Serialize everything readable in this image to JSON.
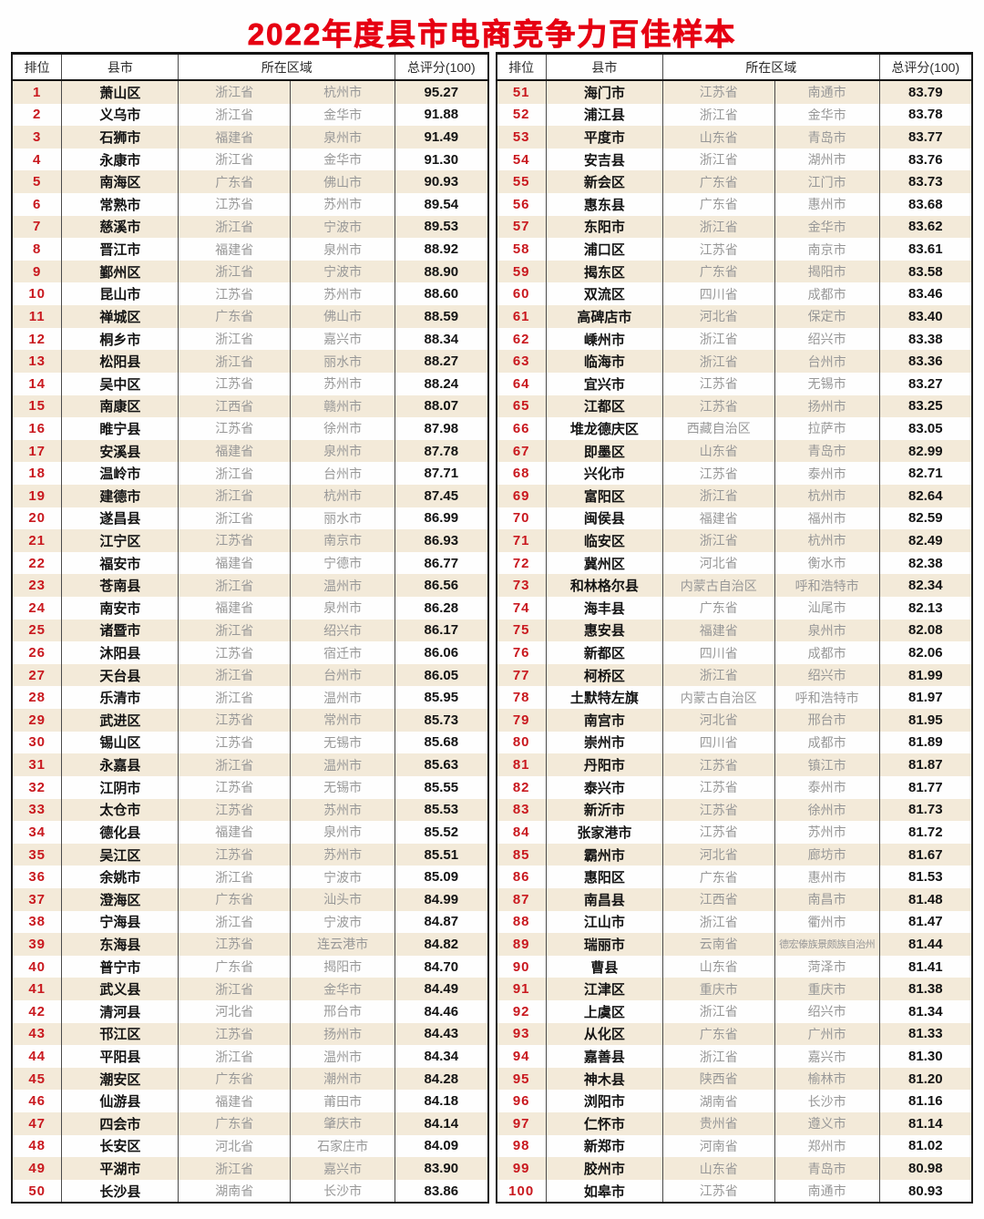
{
  "headers": {
    "rank": "排位",
    "county": "县市",
    "region": "所在区域",
    "score": "总评分(100)"
  },
  "colors": {
    "title_red": "#e60012",
    "rank_red": "#c9191f",
    "stripe_beige": "#f3ead9",
    "muted_gray": "#989898",
    "dark_text": "#141414",
    "border_dark": "#141414"
  },
  "chart_data": {
    "type": "table",
    "title": "2022年度县市电商竞争力百佳样本",
    "columns": [
      "排位",
      "县市",
      "所在区域",
      "总评分(100)"
    ],
    "layout": "two side-by-side tables, ranks 1-50 left, 51-100 right, odd rows beige-striped",
    "rows": [
      {
        "rank": "1",
        "county": "萧山区",
        "province": "浙江省",
        "city": "杭州市",
        "score": "95.27"
      },
      {
        "rank": "2",
        "county": "义乌市",
        "province": "浙江省",
        "city": "金华市",
        "score": "91.88"
      },
      {
        "rank": "3",
        "county": "石狮市",
        "province": "福建省",
        "city": "泉州市",
        "score": "91.49"
      },
      {
        "rank": "4",
        "county": "永康市",
        "province": "浙江省",
        "city": "金华市",
        "score": "91.30"
      },
      {
        "rank": "5",
        "county": "南海区",
        "province": "广东省",
        "city": "佛山市",
        "score": "90.93"
      },
      {
        "rank": "6",
        "county": "常熟市",
        "province": "江苏省",
        "city": "苏州市",
        "score": "89.54"
      },
      {
        "rank": "7",
        "county": "慈溪市",
        "province": "浙江省",
        "city": "宁波市",
        "score": "89.53"
      },
      {
        "rank": "8",
        "county": "晋江市",
        "province": "福建省",
        "city": "泉州市",
        "score": "88.92"
      },
      {
        "rank": "9",
        "county": "鄞州区",
        "province": "浙江省",
        "city": "宁波市",
        "score": "88.90"
      },
      {
        "rank": "10",
        "county": "昆山市",
        "province": "江苏省",
        "city": "苏州市",
        "score": "88.60"
      },
      {
        "rank": "11",
        "county": "禅城区",
        "province": "广东省",
        "city": "佛山市",
        "score": "88.59"
      },
      {
        "rank": "12",
        "county": "桐乡市",
        "province": "浙江省",
        "city": "嘉兴市",
        "score": "88.34"
      },
      {
        "rank": "13",
        "county": "松阳县",
        "province": "浙江省",
        "city": "丽水市",
        "score": "88.27"
      },
      {
        "rank": "14",
        "county": "吴中区",
        "province": "江苏省",
        "city": "苏州市",
        "score": "88.24"
      },
      {
        "rank": "15",
        "county": "南康区",
        "province": "江西省",
        "city": "赣州市",
        "score": "88.07"
      },
      {
        "rank": "16",
        "county": "睢宁县",
        "province": "江苏省",
        "city": "徐州市",
        "score": "87.98"
      },
      {
        "rank": "17",
        "county": "安溪县",
        "province": "福建省",
        "city": "泉州市",
        "score": "87.78"
      },
      {
        "rank": "18",
        "county": "温岭市",
        "province": "浙江省",
        "city": "台州市",
        "score": "87.71"
      },
      {
        "rank": "19",
        "county": "建德市",
        "province": "浙江省",
        "city": "杭州市",
        "score": "87.45"
      },
      {
        "rank": "20",
        "county": "遂昌县",
        "province": "浙江省",
        "city": "丽水市",
        "score": "86.99"
      },
      {
        "rank": "21",
        "county": "江宁区",
        "province": "江苏省",
        "city": "南京市",
        "score": "86.93"
      },
      {
        "rank": "22",
        "county": "福安市",
        "province": "福建省",
        "city": "宁德市",
        "score": "86.77"
      },
      {
        "rank": "23",
        "county": "苍南县",
        "province": "浙江省",
        "city": "温州市",
        "score": "86.56"
      },
      {
        "rank": "24",
        "county": "南安市",
        "province": "福建省",
        "city": "泉州市",
        "score": "86.28"
      },
      {
        "rank": "25",
        "county": "诸暨市",
        "province": "浙江省",
        "city": "绍兴市",
        "score": "86.17"
      },
      {
        "rank": "26",
        "county": "沐阳县",
        "province": "江苏省",
        "city": "宿迁市",
        "score": "86.06"
      },
      {
        "rank": "27",
        "county": "天台县",
        "province": "浙江省",
        "city": "台州市",
        "score": "86.05"
      },
      {
        "rank": "28",
        "county": "乐清市",
        "province": "浙江省",
        "city": "温州市",
        "score": "85.95"
      },
      {
        "rank": "29",
        "county": "武进区",
        "province": "江苏省",
        "city": "常州市",
        "score": "85.73"
      },
      {
        "rank": "30",
        "county": "锡山区",
        "province": "江苏省",
        "city": "无锡市",
        "score": "85.68"
      },
      {
        "rank": "31",
        "county": "永嘉县",
        "province": "浙江省",
        "city": "温州市",
        "score": "85.63"
      },
      {
        "rank": "32",
        "county": "江阴市",
        "province": "江苏省",
        "city": "无锡市",
        "score": "85.55"
      },
      {
        "rank": "33",
        "county": "太仓市",
        "province": "江苏省",
        "city": "苏州市",
        "score": "85.53"
      },
      {
        "rank": "34",
        "county": "德化县",
        "province": "福建省",
        "city": "泉州市",
        "score": "85.52"
      },
      {
        "rank": "35",
        "county": "吴江区",
        "province": "江苏省",
        "city": "苏州市",
        "score": "85.51"
      },
      {
        "rank": "36",
        "county": "余姚市",
        "province": "浙江省",
        "city": "宁波市",
        "score": "85.09"
      },
      {
        "rank": "37",
        "county": "澄海区",
        "province": "广东省",
        "city": "汕头市",
        "score": "84.99"
      },
      {
        "rank": "38",
        "county": "宁海县",
        "province": "浙江省",
        "city": "宁波市",
        "score": "84.87"
      },
      {
        "rank": "39",
        "county": "东海县",
        "province": "江苏省",
        "city": "连云港市",
        "score": "84.82"
      },
      {
        "rank": "40",
        "county": "普宁市",
        "province": "广东省",
        "city": "揭阳市",
        "score": "84.70"
      },
      {
        "rank": "41",
        "county": "武义县",
        "province": "浙江省",
        "city": "金华市",
        "score": "84.49"
      },
      {
        "rank": "42",
        "county": "清河县",
        "province": "河北省",
        "city": "邢台市",
        "score": "84.46"
      },
      {
        "rank": "43",
        "county": "邗江区",
        "province": "江苏省",
        "city": "扬州市",
        "score": "84.43"
      },
      {
        "rank": "44",
        "county": "平阳县",
        "province": "浙江省",
        "city": "温州市",
        "score": "84.34"
      },
      {
        "rank": "45",
        "county": "潮安区",
        "province": "广东省",
        "city": "潮州市",
        "score": "84.28"
      },
      {
        "rank": "46",
        "county": "仙游县",
        "province": "福建省",
        "city": "莆田市",
        "score": "84.18"
      },
      {
        "rank": "47",
        "county": "四会市",
        "province": "广东省",
        "city": "肇庆市",
        "score": "84.14"
      },
      {
        "rank": "48",
        "county": "长安区",
        "province": "河北省",
        "city": "石家庄市",
        "score": "84.09"
      },
      {
        "rank": "49",
        "county": "平湖市",
        "province": "浙江省",
        "city": "嘉兴市",
        "score": "83.90"
      },
      {
        "rank": "50",
        "county": "长沙县",
        "province": "湖南省",
        "city": "长沙市",
        "score": "83.86"
      },
      {
        "rank": "51",
        "county": "海门市",
        "province": "江苏省",
        "city": "南通市",
        "score": "83.79"
      },
      {
        "rank": "52",
        "county": "浦江县",
        "province": "浙江省",
        "city": "金华市",
        "score": "83.78"
      },
      {
        "rank": "53",
        "county": "平度市",
        "province": "山东省",
        "city": "青岛市",
        "score": "83.77"
      },
      {
        "rank": "54",
        "county": "安吉县",
        "province": "浙江省",
        "city": "湖州市",
        "score": "83.76"
      },
      {
        "rank": "55",
        "county": "新会区",
        "province": "广东省",
        "city": "江门市",
        "score": "83.73"
      },
      {
        "rank": "56",
        "county": "惠东县",
        "province": "广东省",
        "city": "惠州市",
        "score": "83.68"
      },
      {
        "rank": "57",
        "county": "东阳市",
        "province": "浙江省",
        "city": "金华市",
        "score": "83.62"
      },
      {
        "rank": "58",
        "county": "浦口区",
        "province": "江苏省",
        "city": "南京市",
        "score": "83.61"
      },
      {
        "rank": "59",
        "county": "揭东区",
        "province": "广东省",
        "city": "揭阳市",
        "score": "83.58"
      },
      {
        "rank": "60",
        "county": "双流区",
        "province": "四川省",
        "city": "成都市",
        "score": "83.46"
      },
      {
        "rank": "61",
        "county": "高碑店市",
        "province": "河北省",
        "city": "保定市",
        "score": "83.40"
      },
      {
        "rank": "62",
        "county": "嵊州市",
        "province": "浙江省",
        "city": "绍兴市",
        "score": "83.38"
      },
      {
        "rank": "63",
        "county": "临海市",
        "province": "浙江省",
        "city": "台州市",
        "score": "83.36"
      },
      {
        "rank": "64",
        "county": "宜兴市",
        "province": "江苏省",
        "city": "无锡市",
        "score": "83.27"
      },
      {
        "rank": "65",
        "county": "江都区",
        "province": "江苏省",
        "city": "扬州市",
        "score": "83.25"
      },
      {
        "rank": "66",
        "county": "堆龙德庆区",
        "province": "西藏自治区",
        "city": "拉萨市",
        "score": "83.05"
      },
      {
        "rank": "67",
        "county": "即墨区",
        "province": "山东省",
        "city": "青岛市",
        "score": "82.99"
      },
      {
        "rank": "68",
        "county": "兴化市",
        "province": "江苏省",
        "city": "泰州市",
        "score": "82.71"
      },
      {
        "rank": "69",
        "county": "富阳区",
        "province": "浙江省",
        "city": "杭州市",
        "score": "82.64"
      },
      {
        "rank": "70",
        "county": "闽侯县",
        "province": "福建省",
        "city": "福州市",
        "score": "82.59"
      },
      {
        "rank": "71",
        "county": "临安区",
        "province": "浙江省",
        "city": "杭州市",
        "score": "82.49"
      },
      {
        "rank": "72",
        "county": "冀州区",
        "province": "河北省",
        "city": "衡水市",
        "score": "82.38"
      },
      {
        "rank": "73",
        "county": "和林格尔县",
        "province": "内蒙古自治区",
        "city": "呼和浩特市",
        "score": "82.34"
      },
      {
        "rank": "74",
        "county": "海丰县",
        "province": "广东省",
        "city": "汕尾市",
        "score": "82.13"
      },
      {
        "rank": "75",
        "county": "惠安县",
        "province": "福建省",
        "city": "泉州市",
        "score": "82.08"
      },
      {
        "rank": "76",
        "county": "新都区",
        "province": "四川省",
        "city": "成都市",
        "score": "82.06"
      },
      {
        "rank": "77",
        "county": "柯桥区",
        "province": "浙江省",
        "city": "绍兴市",
        "score": "81.99"
      },
      {
        "rank": "78",
        "county": "土默特左旗",
        "province": "内蒙古自治区",
        "city": "呼和浩特市",
        "score": "81.97"
      },
      {
        "rank": "79",
        "county": "南宫市",
        "province": "河北省",
        "city": "邢台市",
        "score": "81.95"
      },
      {
        "rank": "80",
        "county": "崇州市",
        "province": "四川省",
        "city": "成都市",
        "score": "81.89"
      },
      {
        "rank": "81",
        "county": "丹阳市",
        "province": "江苏省",
        "city": "镇江市",
        "score": "81.87"
      },
      {
        "rank": "82",
        "county": "泰兴市",
        "province": "江苏省",
        "city": "泰州市",
        "score": "81.77"
      },
      {
        "rank": "83",
        "county": "新沂市",
        "province": "江苏省",
        "city": "徐州市",
        "score": "81.73"
      },
      {
        "rank": "84",
        "county": "张家港市",
        "province": "江苏省",
        "city": "苏州市",
        "score": "81.72"
      },
      {
        "rank": "85",
        "county": "霸州市",
        "province": "河北省",
        "city": "廊坊市",
        "score": "81.67"
      },
      {
        "rank": "86",
        "county": "惠阳区",
        "province": "广东省",
        "city": "惠州市",
        "score": "81.53"
      },
      {
        "rank": "87",
        "county": "南昌县",
        "province": "江西省",
        "city": "南昌市",
        "score": "81.48"
      },
      {
        "rank": "88",
        "county": "江山市",
        "province": "浙江省",
        "city": "衢州市",
        "score": "81.47"
      },
      {
        "rank": "89",
        "county": "瑞丽市",
        "province": "云南省",
        "city": "德宏傣族景颇族自治州",
        "score": "81.44"
      },
      {
        "rank": "90",
        "county": "曹县",
        "province": "山东省",
        "city": "菏泽市",
        "score": "81.41"
      },
      {
        "rank": "91",
        "county": "江津区",
        "province": "重庆市",
        "city": "重庆市",
        "score": "81.38"
      },
      {
        "rank": "92",
        "county": "上虞区",
        "province": "浙江省",
        "city": "绍兴市",
        "score": "81.34"
      },
      {
        "rank": "93",
        "county": "从化区",
        "province": "广东省",
        "city": "广州市",
        "score": "81.33"
      },
      {
        "rank": "94",
        "county": "嘉善县",
        "province": "浙江省",
        "city": "嘉兴市",
        "score": "81.30"
      },
      {
        "rank": "95",
        "county": "神木县",
        "province": "陕西省",
        "city": "榆林市",
        "score": "81.20"
      },
      {
        "rank": "96",
        "county": "浏阳市",
        "province": "湖南省",
        "city": "长沙市",
        "score": "81.16"
      },
      {
        "rank": "97",
        "county": "仁怀市",
        "province": "贵州省",
        "city": "遵义市",
        "score": "81.14"
      },
      {
        "rank": "98",
        "county": "新郑市",
        "province": "河南省",
        "city": "郑州市",
        "score": "81.02"
      },
      {
        "rank": "99",
        "county": "胶州市",
        "province": "山东省",
        "city": "青岛市",
        "score": "80.98"
      },
      {
        "rank": "100",
        "county": "如皋市",
        "province": "江苏省",
        "city": "南通市",
        "score": "80.93"
      }
    ]
  }
}
